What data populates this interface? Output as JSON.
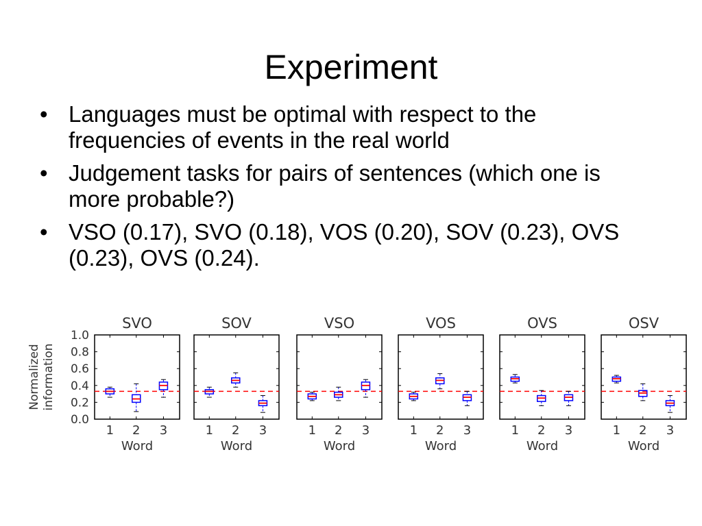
{
  "slide": {
    "title": "Experiment",
    "bullet_symbol": "•",
    "bullets": [
      "Languages must be optimal with respect to the frequencies of events in the real world",
      "Judgement tasks for pairs of sentences (which one is more probable?)",
      "VSO (0.17), SVO (0.18), VOS (0.20), SOV (0.23), OVS (0.23), OVS (0.24)."
    ]
  },
  "chart_data": {
    "type": "box",
    "ylabel": "Normalized\ninformation",
    "xlabel": "Word",
    "categories": [
      "1",
      "2",
      "3"
    ],
    "ylim": [
      0.0,
      1.0
    ],
    "yticks": [
      "0.0",
      "0.2",
      "0.4",
      "0.6",
      "0.8",
      "1.0"
    ],
    "reference_line": 0.33,
    "colors": {
      "box": "#0000ff",
      "median": "#ff0000",
      "reference": "#ff0000",
      "frame": "#000000"
    },
    "panels": [
      {
        "title": "SVO",
        "boxes": [
          {
            "q1": 0.3,
            "median": 0.33,
            "q3": 0.36,
            "whisker_low": 0.26,
            "whisker_high": 0.38
          },
          {
            "q1": 0.2,
            "median": 0.24,
            "q3": 0.29,
            "whisker_low": 0.09,
            "whisker_high": 0.42
          },
          {
            "q1": 0.35,
            "median": 0.4,
            "q3": 0.44,
            "whisker_low": 0.26,
            "whisker_high": 0.47
          }
        ]
      },
      {
        "title": "SOV",
        "boxes": [
          {
            "q1": 0.3,
            "median": 0.33,
            "q3": 0.35,
            "whisker_low": 0.26,
            "whisker_high": 0.38
          },
          {
            "q1": 0.43,
            "median": 0.46,
            "q3": 0.49,
            "whisker_low": 0.38,
            "whisker_high": 0.55
          },
          {
            "q1": 0.16,
            "median": 0.19,
            "q3": 0.22,
            "whisker_low": 0.08,
            "whisker_high": 0.28
          }
        ]
      },
      {
        "title": "VSO",
        "boxes": [
          {
            "q1": 0.24,
            "median": 0.27,
            "q3": 0.3,
            "whisker_low": 0.22,
            "whisker_high": 0.32
          },
          {
            "q1": 0.26,
            "median": 0.29,
            "q3": 0.32,
            "whisker_low": 0.22,
            "whisker_high": 0.38
          },
          {
            "q1": 0.35,
            "median": 0.4,
            "q3": 0.44,
            "whisker_low": 0.26,
            "whisker_high": 0.47
          }
        ]
      },
      {
        "title": "VOS",
        "boxes": [
          {
            "q1": 0.24,
            "median": 0.27,
            "q3": 0.3,
            "whisker_low": 0.22,
            "whisker_high": 0.32
          },
          {
            "q1": 0.42,
            "median": 0.46,
            "q3": 0.49,
            "whisker_low": 0.36,
            "whisker_high": 0.54
          },
          {
            "q1": 0.22,
            "median": 0.26,
            "q3": 0.29,
            "whisker_low": 0.16,
            "whisker_high": 0.33
          }
        ]
      },
      {
        "title": "OVS",
        "boxes": [
          {
            "q1": 0.45,
            "median": 0.48,
            "q3": 0.5,
            "whisker_low": 0.43,
            "whisker_high": 0.53
          },
          {
            "q1": 0.21,
            "median": 0.25,
            "q3": 0.28,
            "whisker_low": 0.16,
            "whisker_high": 0.34
          },
          {
            "q1": 0.22,
            "median": 0.26,
            "q3": 0.29,
            "whisker_low": 0.16,
            "whisker_high": 0.33
          }
        ]
      },
      {
        "title": "OSV",
        "boxes": [
          {
            "q1": 0.45,
            "median": 0.48,
            "q3": 0.5,
            "whisker_low": 0.43,
            "whisker_high": 0.52
          },
          {
            "q1": 0.27,
            "median": 0.31,
            "q3": 0.34,
            "whisker_low": 0.22,
            "whisker_high": 0.42
          },
          {
            "q1": 0.16,
            "median": 0.19,
            "q3": 0.22,
            "whisker_low": 0.08,
            "whisker_high": 0.28
          }
        ]
      }
    ]
  }
}
